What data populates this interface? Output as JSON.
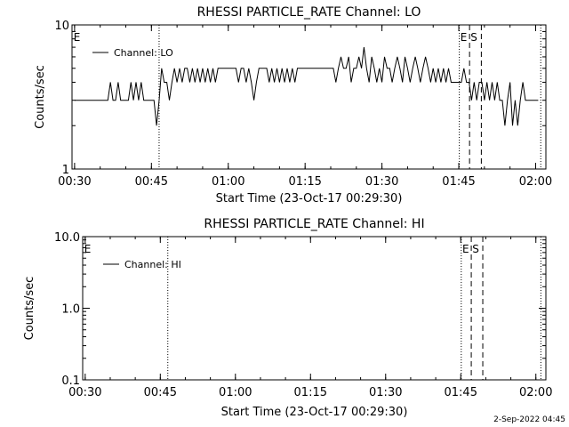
{
  "chart_data": [
    {
      "type": "line",
      "title": "RHESSI PARTICLE_RATE Channel: LO",
      "xlabel": "Start Time (23-Oct-17 00:29:30)",
      "ylabel": "Counts/sec",
      "yscale": "log",
      "ylim": [
        1,
        10
      ],
      "xlim_minutes": [
        0,
        92.5
      ],
      "xticks": [
        {
          "t": 0.5,
          "label": "00:30"
        },
        {
          "t": 15.5,
          "label": "00:45"
        },
        {
          "t": 30.5,
          "label": "01:00"
        },
        {
          "t": 45.5,
          "label": "01:15"
        },
        {
          "t": 60.5,
          "label": "01:30"
        },
        {
          "t": 75.5,
          "label": "01:45"
        },
        {
          "t": 90.5,
          "label": "02:00"
        }
      ],
      "yticks": [
        {
          "v": 1,
          "label": "1"
        },
        {
          "v": 10,
          "label": "10"
        }
      ],
      "vlines": [
        {
          "t": 17.0,
          "style": "dotted"
        },
        {
          "t": 75.6,
          "style": "dotted"
        },
        {
          "t": 77.6,
          "style": "dashed"
        },
        {
          "t": 79.9,
          "style": "dashed"
        },
        {
          "t": 91.5,
          "style": "dotted"
        }
      ],
      "markers": [
        {
          "t": 0.3,
          "text": "E"
        },
        {
          "t": 75.8,
          "text": "E"
        },
        {
          "t": 77.8,
          "text": "S"
        }
      ],
      "legend": {
        "placement": "top-left",
        "entries": [
          "Channel: LO"
        ]
      },
      "series": [
        {
          "name": "Channel: LO",
          "points": [
            [
              0.5,
              3
            ],
            [
              7,
              3
            ],
            [
              7.5,
              4
            ],
            [
              8,
              3
            ],
            [
              8.5,
              3
            ],
            [
              9,
              4
            ],
            [
              9.5,
              3
            ],
            [
              11,
              3
            ],
            [
              11.5,
              4
            ],
            [
              12,
              3
            ],
            [
              12.5,
              4
            ],
            [
              13,
              3
            ],
            [
              13.5,
              4
            ],
            [
              14,
              3
            ],
            [
              14.5,
              3
            ],
            [
              15,
              3
            ],
            [
              15.5,
              3
            ],
            [
              16,
              3
            ],
            [
              16.5,
              2
            ],
            [
              17,
              3
            ],
            [
              17.5,
              5
            ],
            [
              18,
              4
            ],
            [
              18.5,
              4
            ],
            [
              19,
              3
            ],
            [
              19.5,
              4
            ],
            [
              20,
              5
            ],
            [
              20.5,
              4
            ],
            [
              21,
              5
            ],
            [
              21.5,
              4
            ],
            [
              22,
              5
            ],
            [
              22.5,
              5
            ],
            [
              23,
              4
            ],
            [
              23.5,
              5
            ],
            [
              24,
              4
            ],
            [
              24.5,
              5
            ],
            [
              25,
              4
            ],
            [
              25.5,
              5
            ],
            [
              26,
              4
            ],
            [
              26.5,
              5
            ],
            [
              27,
              4
            ],
            [
              27.5,
              5
            ],
            [
              28,
              4
            ],
            [
              28.5,
              5
            ],
            [
              29,
              5
            ],
            [
              32,
              5
            ],
            [
              32.5,
              4
            ],
            [
              33,
              5
            ],
            [
              33.5,
              5
            ],
            [
              34,
              4
            ],
            [
              34.5,
              5
            ],
            [
              35,
              4
            ],
            [
              35.5,
              3
            ],
            [
              36,
              4
            ],
            [
              36.5,
              5
            ],
            [
              38,
              5
            ],
            [
              38.5,
              4
            ],
            [
              39,
              5
            ],
            [
              39.5,
              4
            ],
            [
              40,
              5
            ],
            [
              40.5,
              4
            ],
            [
              41,
              5
            ],
            [
              41.5,
              4
            ],
            [
              42,
              5
            ],
            [
              42.5,
              4
            ],
            [
              43,
              5
            ],
            [
              43.5,
              4
            ],
            [
              44,
              5
            ],
            [
              44.5,
              5
            ],
            [
              51,
              5
            ],
            [
              51.5,
              4
            ],
            [
              52,
              5
            ],
            [
              52.5,
              6
            ],
            [
              53,
              5
            ],
            [
              53.5,
              5
            ],
            [
              54,
              6
            ],
            [
              54.5,
              4
            ],
            [
              55,
              5
            ],
            [
              55.5,
              5
            ],
            [
              56,
              6
            ],
            [
              56.5,
              5
            ],
            [
              57,
              7
            ],
            [
              57.5,
              5
            ],
            [
              58,
              4
            ],
            [
              58.5,
              6
            ],
            [
              59,
              5
            ],
            [
              59.5,
              4
            ],
            [
              60,
              5
            ],
            [
              60.5,
              4
            ],
            [
              61,
              6
            ],
            [
              61.5,
              5
            ],
            [
              62,
              5
            ],
            [
              62.5,
              4
            ],
            [
              63,
              5
            ],
            [
              63.5,
              6
            ],
            [
              64,
              5
            ],
            [
              64.5,
              4
            ],
            [
              65,
              6
            ],
            [
              65.5,
              5
            ],
            [
              66,
              4
            ],
            [
              66.5,
              5
            ],
            [
              67,
              6
            ],
            [
              67.5,
              5
            ],
            [
              68,
              4
            ],
            [
              68.5,
              5
            ],
            [
              69,
              6
            ],
            [
              69.5,
              5
            ],
            [
              70,
              4
            ],
            [
              70.5,
              5
            ],
            [
              71,
              4
            ],
            [
              71.5,
              5
            ],
            [
              72,
              4
            ],
            [
              72.5,
              5
            ],
            [
              73,
              4
            ],
            [
              73.5,
              5
            ],
            [
              74,
              4
            ],
            [
              74.5,
              4
            ],
            [
              76,
              4
            ],
            [
              76.5,
              5
            ],
            [
              77,
              4
            ],
            [
              77.5,
              4
            ],
            [
              78,
              3
            ],
            [
              78.5,
              4
            ],
            [
              79,
              3
            ],
            [
              79.5,
              4
            ],
            [
              80,
              4
            ],
            [
              80.5,
              3
            ],
            [
              81,
              4
            ],
            [
              81.5,
              3
            ],
            [
              82,
              4
            ],
            [
              82.5,
              3
            ],
            [
              83,
              4
            ],
            [
              83.5,
              3
            ],
            [
              84,
              3
            ],
            [
              84.5,
              2
            ],
            [
              85,
              3
            ],
            [
              85.5,
              4
            ],
            [
              86,
              2
            ],
            [
              86.5,
              3
            ],
            [
              87,
              2
            ],
            [
              87.5,
              3
            ],
            [
              88,
              4
            ],
            [
              88.5,
              3
            ],
            [
              89,
              3
            ],
            [
              91,
              3
            ]
          ]
        }
      ]
    },
    {
      "type": "line",
      "title": "RHESSI PARTICLE_RATE Channel: HI",
      "xlabel": "Start Time (23-Oct-17 00:29:30)",
      "ylabel": "Counts/sec",
      "yscale": "log",
      "ylim": [
        0.1,
        10
      ],
      "xlim_minutes": [
        0,
        92.5
      ],
      "xticks": [
        {
          "t": 0.5,
          "label": "00:30"
        },
        {
          "t": 15.5,
          "label": "00:45"
        },
        {
          "t": 30.5,
          "label": "01:00"
        },
        {
          "t": 45.5,
          "label": "01:15"
        },
        {
          "t": 60.5,
          "label": "01:30"
        },
        {
          "t": 75.5,
          "label": "01:45"
        },
        {
          "t": 90.5,
          "label": "02:00"
        }
      ],
      "yticks": [
        {
          "v": 0.1,
          "label": "0.1"
        },
        {
          "v": 1,
          "label": "1.0"
        },
        {
          "v": 10,
          "label": "10.0"
        }
      ],
      "vlines": [
        {
          "t": 17.0,
          "style": "dotted"
        },
        {
          "t": 75.6,
          "style": "dotted"
        },
        {
          "t": 77.6,
          "style": "dashed"
        },
        {
          "t": 79.9,
          "style": "dashed"
        },
        {
          "t": 91.5,
          "style": "dotted"
        }
      ],
      "markers": [
        {
          "t": 0.3,
          "text": "E"
        },
        {
          "t": 75.8,
          "text": "E"
        },
        {
          "t": 77.8,
          "text": "S"
        }
      ],
      "legend": {
        "placement": "top-left",
        "entries": [
          "Channel: HI"
        ]
      },
      "series": [
        {
          "name": "Channel: HI",
          "points": []
        }
      ]
    }
  ],
  "footer": {
    "date_stamp": "2-Sep-2022 04:45"
  }
}
